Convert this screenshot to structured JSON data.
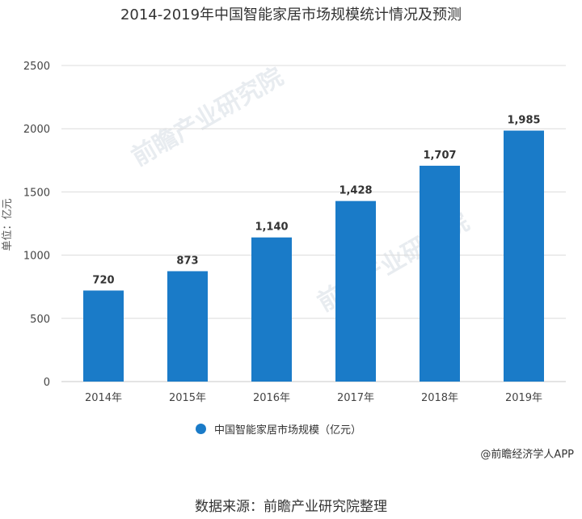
{
  "chart_data": {
    "type": "bar",
    "title": "2014-2019年中国智能家居市场规模统计情况及预测",
    "categories": [
      "2014年",
      "2015年",
      "2016年",
      "2017年",
      "2018年",
      "2019年"
    ],
    "series": [
      {
        "name": "中国智能家居市场规模（亿元）",
        "values": [
          720,
          873,
          1140,
          1428,
          1707,
          1985
        ],
        "labels": [
          "720",
          "873",
          "1,140",
          "1,428",
          "1,707",
          "1,985"
        ]
      }
    ],
    "ylabel": "单位：亿元",
    "ylim": [
      0,
      2500
    ],
    "yticks": [
      0,
      500,
      1000,
      1500,
      2000,
      2500
    ],
    "grid": true,
    "legend": "bottom",
    "color": "#1a7bc8"
  },
  "credit": "@前瞻经济学人APP",
  "source": "数据来源：前瞻产业研究院整理",
  "watermark": "前瞻产业研究院"
}
